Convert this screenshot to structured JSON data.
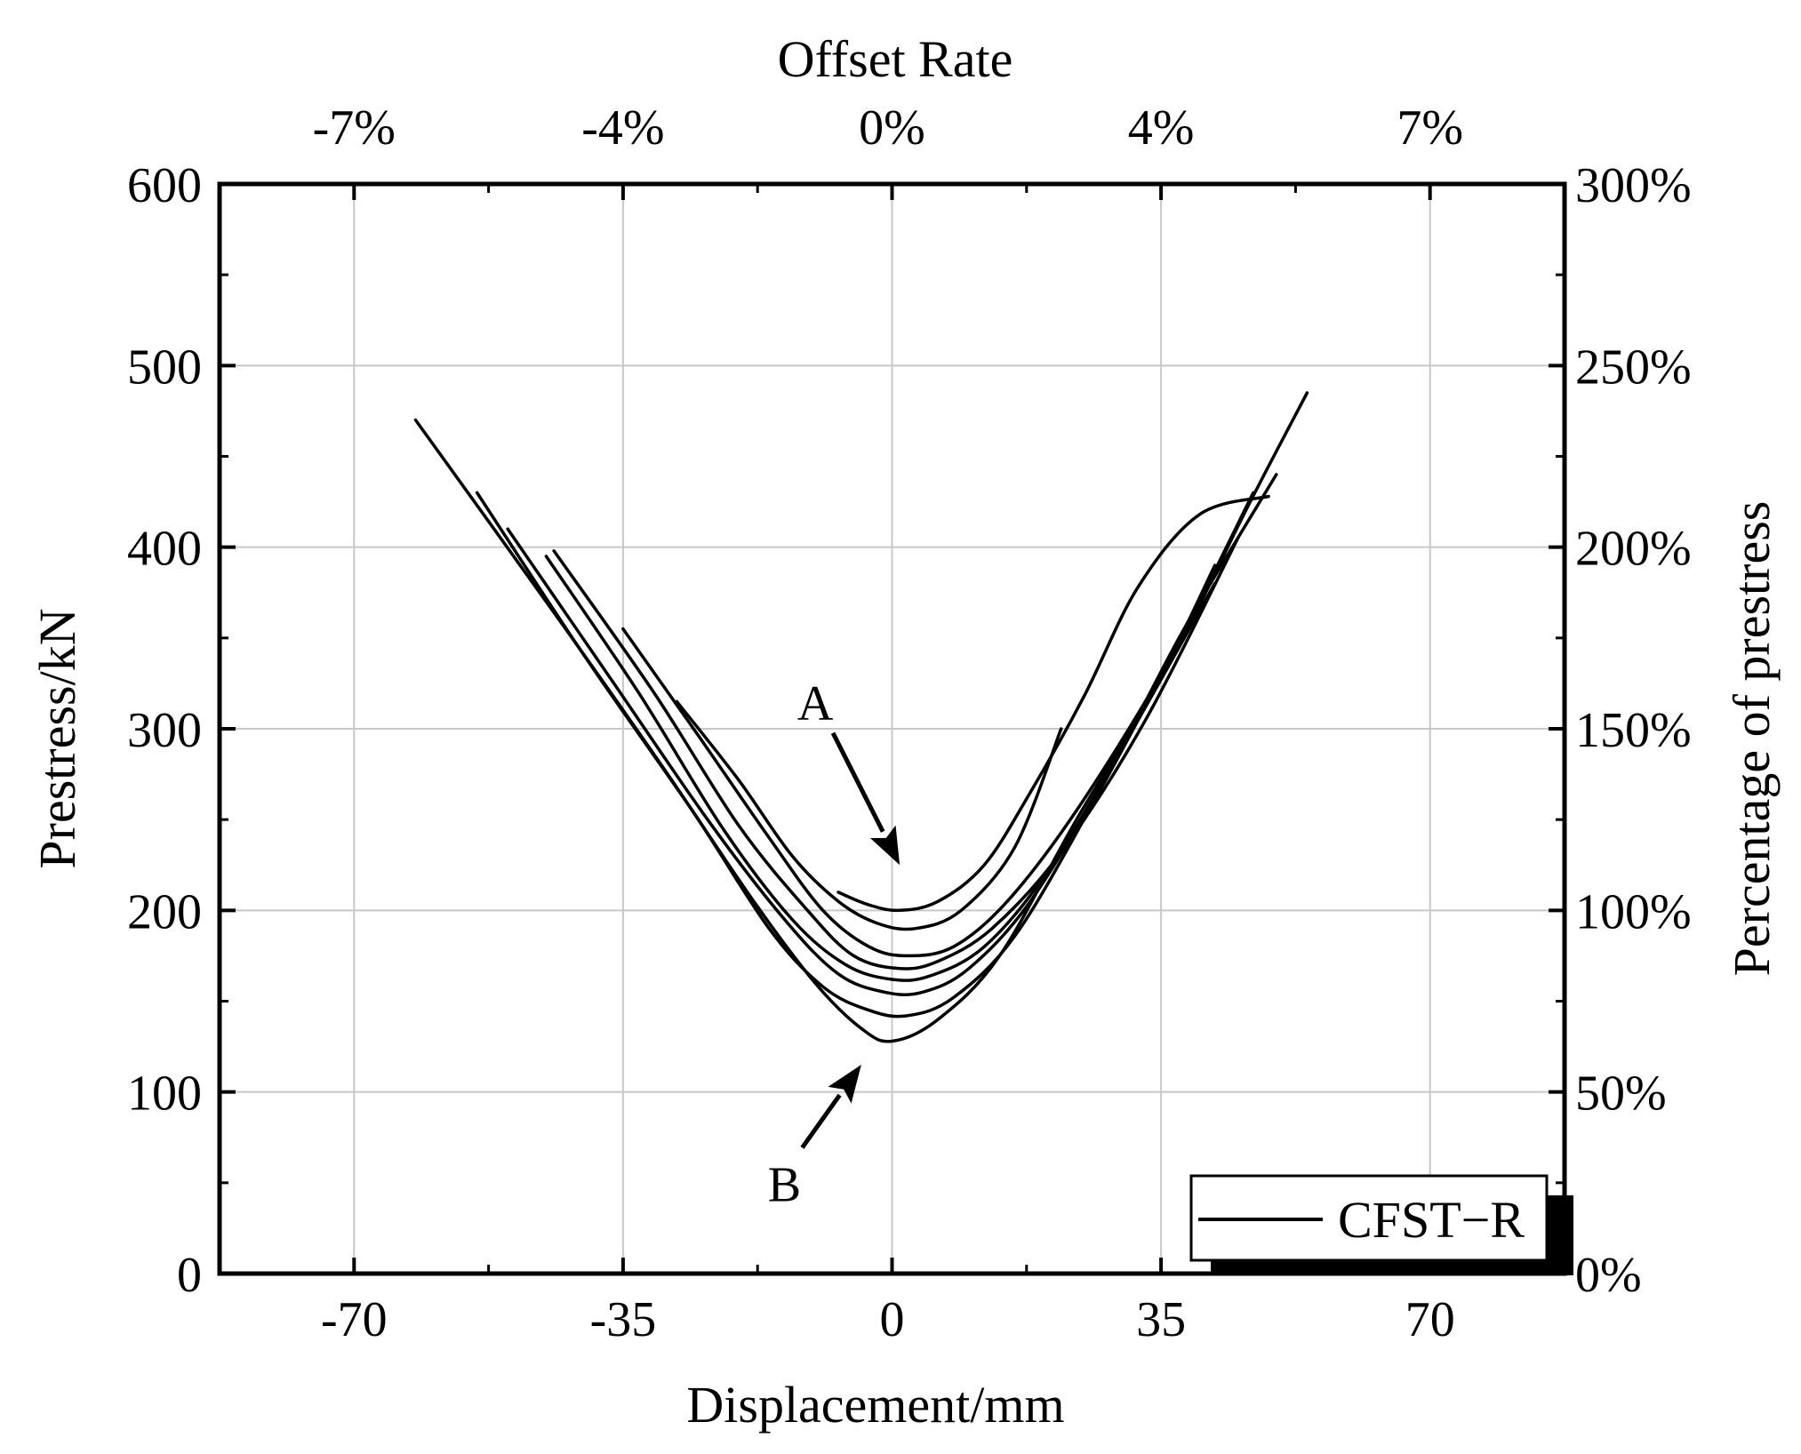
{
  "chart_data": {
    "type": "line",
    "title": "",
    "xlabel": "Displacement/mm",
    "ylabel": "Prestress/kN",
    "top_xlabel": "Offset Rate",
    "right_ylabel": "Percentage of prestress",
    "xlim": [
      -87.5,
      87.5
    ],
    "ylim": [
      0,
      600
    ],
    "xticks": [
      -70,
      -35,
      0,
      35,
      70
    ],
    "xtick_labels": [
      "-70",
      "-35",
      "0",
      "35",
      "70"
    ],
    "yticks": [
      0,
      100,
      200,
      300,
      400,
      500,
      600
    ],
    "ytick_labels": [
      "0",
      "100",
      "200",
      "300",
      "400",
      "500",
      "600"
    ],
    "top_ticks": [
      -70,
      -35,
      0,
      35,
      70
    ],
    "top_tick_labels": [
      "-7%",
      "-4%",
      "0%",
      "4%",
      "7%"
    ],
    "right_ticks": [
      0,
      100,
      200,
      300,
      400,
      500,
      600
    ],
    "right_tick_labels": [
      "0%",
      "50%",
      "100%",
      "150%",
      "200%",
      "250%",
      "300%"
    ],
    "grid": true,
    "legend": {
      "position": "bottom-right",
      "entries": [
        "CFST−R"
      ]
    },
    "annotations": [
      {
        "text": "A",
        "x": -10,
        "y": 305,
        "arrow_to": [
          1,
          225
        ]
      },
      {
        "text": "B",
        "x": -14,
        "y": 40,
        "arrow_to": [
          -4,
          115
        ]
      }
    ],
    "series": [
      {
        "name": "CFST−R",
        "x": [
          -62,
          -45,
          -30,
          -18,
          -10,
          -4,
          0,
          6,
          14,
          24,
          36,
          46,
          54
        ],
        "y": [
          470,
          370,
          280,
          205,
          160,
          135,
          128,
          140,
          175,
          250,
          335,
          420,
          485
        ]
      },
      {
        "name": "CFST−R",
        "x": [
          -54,
          -40,
          -26,
          -16,
          -9,
          -3,
          2,
          8,
          16,
          26,
          37,
          47
        ],
        "y": [
          430,
          340,
          255,
          190,
          158,
          145,
          142,
          152,
          186,
          258,
          345,
          430
        ]
      },
      {
        "name": "CFST−R",
        "x": [
          -50,
          -37,
          -24,
          -14,
          -7,
          -1,
          4,
          10,
          18,
          28,
          38,
          50
        ],
        "y": [
          410,
          330,
          250,
          195,
          165,
          155,
          155,
          168,
          205,
          275,
          355,
          440
        ]
      },
      {
        "name": "CFST−R",
        "x": [
          -45,
          -33,
          -22,
          -13,
          -6,
          0,
          5,
          12,
          20,
          30,
          42
        ],
        "y": [
          395,
          320,
          245,
          195,
          170,
          162,
          164,
          180,
          220,
          290,
          380
        ]
      },
      {
        "name": "CFST−R",
        "x": [
          -44,
          -31,
          -20,
          -11,
          -5,
          1,
          6,
          13,
          22,
          33,
          45
        ],
        "y": [
          398,
          320,
          247,
          200,
          175,
          168,
          172,
          190,
          232,
          305,
          405
        ]
      },
      {
        "name": "CFST−R",
        "x": [
          -35,
          -25,
          -16,
          -9,
          -3,
          2,
          8,
          15,
          24,
          35,
          42
        ],
        "y": [
          355,
          295,
          240,
          200,
          180,
          175,
          180,
          205,
          255,
          330,
          390
        ]
      },
      {
        "name": "CFST−R",
        "x": [
          -28,
          -20,
          -13,
          -7,
          -2,
          3,
          9,
          16,
          22
        ],
        "y": [
          315,
          272,
          230,
          205,
          193,
          190,
          200,
          235,
          300
        ]
      },
      {
        "name": "CFST−R",
        "x": [
          -7,
          -3,
          1,
          6,
          12,
          18,
          25,
          32,
          40,
          49
        ],
        "y": [
          210,
          203,
          200,
          205,
          225,
          265,
          318,
          378,
          418,
          428
        ]
      }
    ]
  }
}
